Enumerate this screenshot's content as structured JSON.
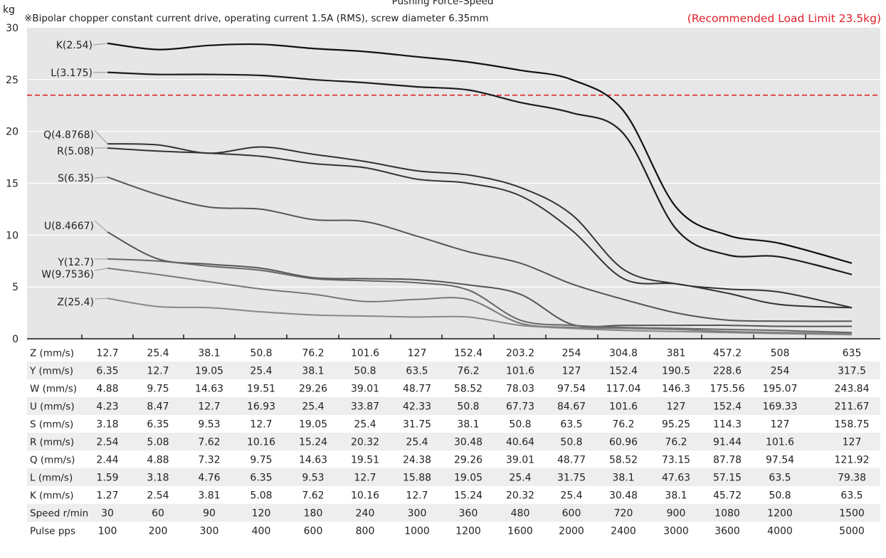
{
  "chart_data": {
    "type": "line",
    "title_partial": "Pushing Force–Speed",
    "subtitle": "※Bipolar chopper constant current drive, operating current 1.5A (RMS), screw diameter 6.35mm",
    "recommended_limit": {
      "label": "(Recommended Load Limit 23.5kg)",
      "value": 23.5,
      "color": "#e0202a"
    },
    "ylabel": "kg",
    "ylim": [
      0,
      30
    ],
    "yticks": [
      "0",
      "5",
      "10",
      "15",
      "20",
      "25",
      "30"
    ],
    "grid": true,
    "x": [
      100,
      200,
      300,
      400,
      600,
      800,
      1000,
      1200,
      1600,
      2000,
      2400,
      3000,
      3600,
      4000,
      5000
    ],
    "series": [
      {
        "name": "K(2.54)",
        "color": "#111111",
        "values": [
          28.5,
          27.9,
          28.3,
          28.4,
          28.0,
          27.7,
          27.2,
          26.7,
          25.9,
          25.0,
          22.0,
          12.7,
          10.0,
          9.2,
          7.3
        ]
      },
      {
        "name": "L(3.175)",
        "color": "#1c1c1c",
        "values": [
          25.7,
          25.5,
          25.5,
          25.4,
          25.0,
          24.7,
          24.3,
          24.0,
          22.8,
          21.8,
          19.8,
          10.6,
          8.1,
          7.9,
          6.2
        ]
      },
      {
        "name": "Q(4.8768)",
        "color": "#333333",
        "values": [
          18.8,
          18.7,
          17.9,
          18.5,
          17.8,
          17.1,
          16.2,
          15.8,
          14.6,
          12.0,
          6.7,
          5.3,
          4.8,
          4.5,
          3.0
        ]
      },
      {
        "name": "R(5.08)",
        "color": "#333333",
        "values": [
          18.4,
          18.1,
          17.9,
          17.6,
          16.9,
          16.5,
          15.4,
          15.0,
          13.8,
          10.5,
          5.8,
          5.3,
          4.4,
          3.3,
          3.0
        ]
      },
      {
        "name": "S(6.35)",
        "color": "#555555",
        "values": [
          15.6,
          13.9,
          12.7,
          12.5,
          11.5,
          11.3,
          9.9,
          8.4,
          7.3,
          5.3,
          3.8,
          2.5,
          1.8,
          1.7,
          1.7
        ]
      },
      {
        "name": "U(8.4667)",
        "color": "#555555",
        "values": [
          10.3,
          7.7,
          7.2,
          6.8,
          5.9,
          5.8,
          5.7,
          5.2,
          4.3,
          1.4,
          1.3,
          1.3,
          1.3,
          1.2,
          1.2
        ]
      },
      {
        "name": "Y(12.7)",
        "color": "#666666",
        "values": [
          7.7,
          7.5,
          7.0,
          6.6,
          5.8,
          5.6,
          5.4,
          4.7,
          1.8,
          1.3,
          1.1,
          1.0,
          0.9,
          0.8,
          0.6
        ]
      },
      {
        "name": "W(9.7536)",
        "color": "#777777",
        "values": [
          6.8,
          6.2,
          5.5,
          4.8,
          4.3,
          3.6,
          3.8,
          3.8,
          1.5,
          1.1,
          1.0,
          0.9,
          0.7,
          0.6,
          0.5
        ]
      },
      {
        "name": "Z(25.4)",
        "color": "#888888",
        "values": [
          3.9,
          3.1,
          3.0,
          2.6,
          2.3,
          2.2,
          2.1,
          2.1,
          1.3,
          1.0,
          0.8,
          0.7,
          0.6,
          0.5,
          0.4
        ]
      }
    ],
    "table": [
      {
        "label": "Z (mm/s)",
        "values": [
          "12.7",
          "25.4",
          "38.1",
          "50.8",
          "76.2",
          "101.6",
          "127",
          "152.4",
          "203.2",
          "254",
          "304.8",
          "381",
          "457.2",
          "508",
          "635"
        ]
      },
      {
        "label": "Y (mm/s)",
        "values": [
          "6.35",
          "12.7",
          "19.05",
          "25.4",
          "38.1",
          "50.8",
          "63.5",
          "76.2",
          "101.6",
          "127",
          "152.4",
          "190.5",
          "228.6",
          "254",
          "317.5"
        ]
      },
      {
        "label": "W (mm/s)",
        "values": [
          "4.88",
          "9.75",
          "14.63",
          "19.51",
          "29.26",
          "39.01",
          "48.77",
          "58.52",
          "78.03",
          "97.54",
          "117.04",
          "146.3",
          "175.56",
          "195.07",
          "243.84"
        ]
      },
      {
        "label": "U (mm/s)",
        "values": [
          "4.23",
          "8.47",
          "12.7",
          "16.93",
          "25.4",
          "33.87",
          "42.33",
          "50.8",
          "67.73",
          "84.67",
          "101.6",
          "127",
          "152.4",
          "169.33",
          "211.67"
        ]
      },
      {
        "label": "S (mm/s)",
        "values": [
          "3.18",
          "6.35",
          "9.53",
          "12.7",
          "19.05",
          "25.4",
          "31.75",
          "38.1",
          "50.8",
          "63.5",
          "76.2",
          "95.25",
          "114.3",
          "127",
          "158.75"
        ]
      },
      {
        "label": "R (mm/s)",
        "values": [
          "2.54",
          "5.08",
          "7.62",
          "10.16",
          "15.24",
          "20.32",
          "25.4",
          "30.48",
          "40.64",
          "50.8",
          "60.96",
          "76.2",
          "91.44",
          "101.6",
          "127"
        ]
      },
      {
        "label": "Q (mm/s)",
        "values": [
          "2.44",
          "4.88",
          "7.32",
          "9.75",
          "14.63",
          "19.51",
          "24.38",
          "29.26",
          "39.01",
          "48.77",
          "58.52",
          "73.15",
          "87.78",
          "97.54",
          "121.92"
        ]
      },
      {
        "label": "L (mm/s)",
        "values": [
          "1.59",
          "3.18",
          "4.76",
          "6.35",
          "9.53",
          "12.7",
          "15.88",
          "19.05",
          "25.4",
          "31.75",
          "38.1",
          "47.63",
          "57.15",
          "63.5",
          "79.38"
        ]
      },
      {
        "label": "K (mm/s)",
        "values": [
          "1.27",
          "2.54",
          "3.81",
          "5.08",
          "7.62",
          "10.16",
          "12.7",
          "15.24",
          "20.32",
          "25.4",
          "30.48",
          "38.1",
          "45.72",
          "50.8",
          "63.5"
        ]
      },
      {
        "label": "Speed r/min",
        "values": [
          "30",
          "60",
          "90",
          "120",
          "180",
          "240",
          "300",
          "360",
          "480",
          "600",
          "720",
          "900",
          "1080",
          "1200",
          "1500"
        ]
      },
      {
        "label": "Pulse pps",
        "values": [
          "100",
          "200",
          "300",
          "400",
          "600",
          "800",
          "1000",
          "1200",
          "1600",
          "2000",
          "2400",
          "3000",
          "3600",
          "4000",
          "5000"
        ]
      }
    ]
  }
}
